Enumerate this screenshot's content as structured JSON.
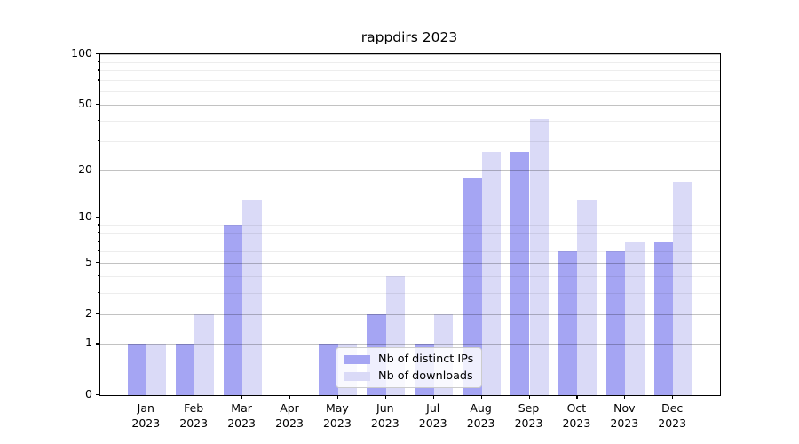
{
  "title": "rappdirs 2023",
  "chart_data": {
    "type": "bar",
    "title": "rappdirs 2023",
    "categories": [
      "Jan",
      "Feb",
      "Mar",
      "Apr",
      "May",
      "Jun",
      "Jul",
      "Aug",
      "Sep",
      "Oct",
      "Nov",
      "Dec"
    ],
    "year": "2023",
    "series": [
      {
        "name": "Nb of distinct IPs",
        "color": "#a5a5f3",
        "values": [
          1,
          1,
          9,
          0,
          1,
          2,
          1,
          18,
          26,
          6,
          6,
          7
        ]
      },
      {
        "name": "Nb of downloads",
        "color": "#dadaf7",
        "values": [
          1,
          2,
          13,
          0,
          1,
          4,
          2,
          26,
          41,
          13,
          7,
          17
        ]
      }
    ],
    "xlabel": "",
    "ylabel": "",
    "yscale": "log1p",
    "ylim": [
      0,
      100
    ],
    "yticks": [
      0,
      1,
      2,
      5,
      10,
      20,
      50,
      100
    ],
    "ytick_labels": [
      "0",
      "1",
      "2",
      "5",
      "10",
      "20",
      "50",
      "100"
    ],
    "yticks_minor": [
      3,
      4,
      6,
      7,
      8,
      9,
      30,
      40,
      60,
      70,
      80,
      90
    ],
    "grid": "horizontal",
    "legend_position": "lower center inside plot"
  },
  "colors": {
    "background": "#ffffff",
    "bar_distinct_ips": "#a5a5f3",
    "bar_downloads": "#dadaf7",
    "grid_major": "#c2c2c2",
    "grid_minor": "#ededed",
    "axis": "#000000"
  }
}
